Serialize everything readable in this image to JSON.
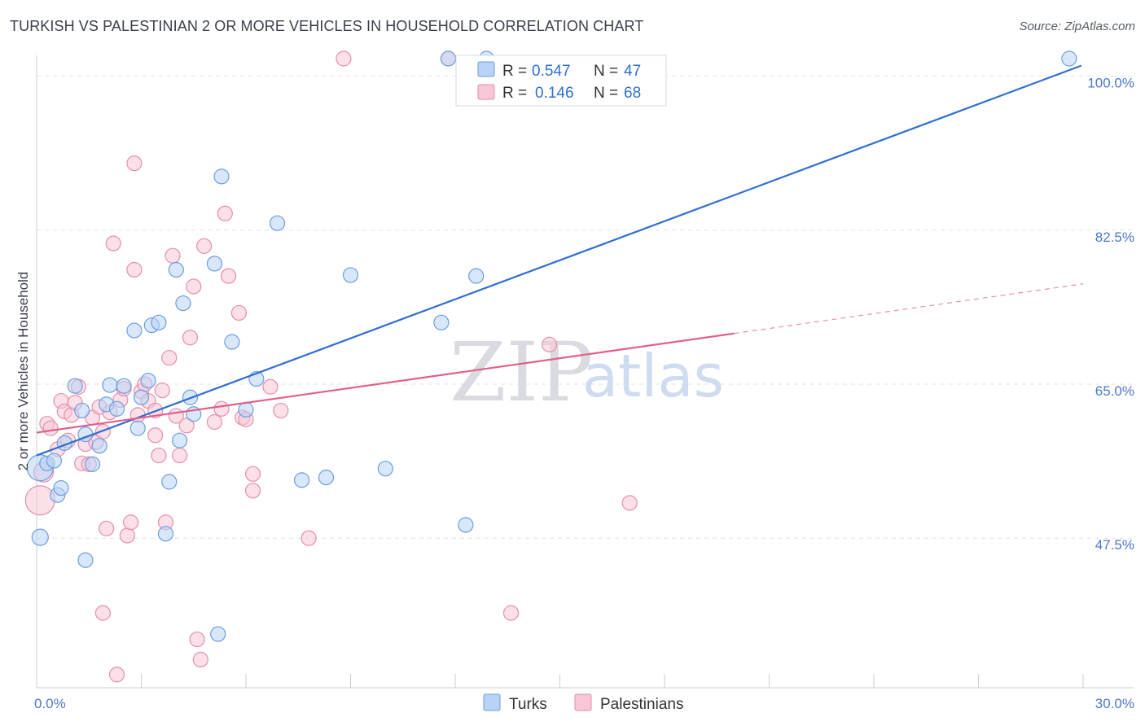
{
  "title": "TURKISH VS PALESTINIAN 2 OR MORE VEHICLES IN HOUSEHOLD CORRELATION CHART",
  "source": "Source: ZipAtlas.com",
  "watermark": {
    "zip": "ZIP",
    "atlas": "atlas"
  },
  "colors": {
    "turks_fill": "#b8d3f5",
    "turks_stroke": "#6d9ddf",
    "turks_line": "#2f6fd1",
    "pal_fill": "#f8c6d6",
    "pal_stroke": "#e58fab",
    "pal_line": "#e0608a",
    "grid": "#dde1e8",
    "tick_text": "#4a78c8"
  },
  "legend": {
    "rows": [
      {
        "r_label": "R =",
        "r_value": "0.547",
        "n_label": "N =",
        "n_value": "47"
      },
      {
        "r_label": "R =",
        "r_value": "0.146",
        "n_label": "N =",
        "n_value": "68"
      }
    ]
  },
  "chart_data": {
    "type": "scatter",
    "xlabel": "",
    "ylabel": "2 or more Vehicles in Household",
    "xlim": [
      0,
      30
    ],
    "ylim": [
      30.5,
      102
    ],
    "x_tick_labels": [
      "0.0%",
      "30.0%"
    ],
    "y_ticks": [
      47.5,
      65.0,
      82.5,
      100.0
    ],
    "y_tick_labels": [
      "47.5%",
      "65.0%",
      "82.5%",
      "100.0%"
    ],
    "grid": true,
    "legend_position": "top-center",
    "series": [
      {
        "name": "Turks",
        "trend": {
          "x0": 0.0,
          "y0": 56.9,
          "x1": 29.95,
          "y1": 101.2,
          "dashed_from": null
        },
        "points": [
          [
            0.1,
            55.5,
            16
          ],
          [
            0.1,
            47.6,
            10
          ],
          [
            0.3,
            56.0,
            9
          ],
          [
            0.5,
            56.3,
            9
          ],
          [
            0.6,
            52.4,
            9
          ],
          [
            0.7,
            53.2,
            9
          ],
          [
            0.8,
            58.3,
            9
          ],
          [
            1.1,
            64.8,
            9
          ],
          [
            1.3,
            62.0,
            9
          ],
          [
            1.4,
            45.0,
            9
          ],
          [
            1.4,
            59.3,
            9
          ],
          [
            1.6,
            55.9,
            9
          ],
          [
            1.8,
            58.0,
            9
          ],
          [
            2.0,
            62.7,
            9
          ],
          [
            2.1,
            64.9,
            9
          ],
          [
            2.3,
            62.2,
            9
          ],
          [
            2.5,
            64.8,
            9
          ],
          [
            2.8,
            71.1,
            9
          ],
          [
            2.9,
            60.0,
            9
          ],
          [
            3.0,
            63.5,
            9
          ],
          [
            3.2,
            65.4,
            9
          ],
          [
            3.3,
            71.7,
            9
          ],
          [
            3.5,
            72.0,
            9
          ],
          [
            3.7,
            48.0,
            9
          ],
          [
            3.8,
            53.9,
            9
          ],
          [
            4.0,
            78.0,
            9
          ],
          [
            4.1,
            58.6,
            9
          ],
          [
            4.2,
            74.2,
            9
          ],
          [
            4.4,
            63.5,
            9
          ],
          [
            4.5,
            61.6,
            9
          ],
          [
            5.1,
            78.7,
            9
          ],
          [
            5.2,
            36.6,
            9
          ],
          [
            5.3,
            88.6,
            9
          ],
          [
            5.6,
            69.8,
            9
          ],
          [
            6.0,
            62.1,
            9
          ],
          [
            6.3,
            65.6,
            9
          ],
          [
            6.9,
            83.3,
            9
          ],
          [
            7.6,
            54.1,
            9
          ],
          [
            8.3,
            54.4,
            9
          ],
          [
            9.0,
            77.4,
            9
          ],
          [
            10.0,
            55.4,
            9
          ],
          [
            11.6,
            72.0,
            9
          ],
          [
            11.8,
            102.0,
            9
          ],
          [
            12.3,
            49.0,
            9
          ],
          [
            12.6,
            77.3,
            9
          ],
          [
            12.9,
            102.0,
            9
          ],
          [
            29.6,
            102.0,
            9
          ]
        ]
      },
      {
        "name": "Palestinians",
        "trend": {
          "x0": 0.0,
          "y0": 59.5,
          "x1": 30.0,
          "y1": 76.4,
          "dashed_from": 20.0
        },
        "points": [
          [
            0.1,
            51.8,
            18
          ],
          [
            0.2,
            55.0,
            12
          ],
          [
            0.3,
            60.5,
            9
          ],
          [
            0.4,
            60.0,
            9
          ],
          [
            0.6,
            57.6,
            9
          ],
          [
            0.7,
            63.1,
            9
          ],
          [
            0.8,
            61.9,
            9
          ],
          [
            0.9,
            58.6,
            9
          ],
          [
            1.0,
            61.5,
            9
          ],
          [
            1.1,
            62.9,
            9
          ],
          [
            1.2,
            64.7,
            9
          ],
          [
            1.3,
            56.0,
            9
          ],
          [
            1.4,
            58.2,
            9
          ],
          [
            1.5,
            55.9,
            9
          ],
          [
            1.6,
            61.2,
            9
          ],
          [
            1.7,
            58.4,
            9
          ],
          [
            1.8,
            62.4,
            9
          ],
          [
            1.9,
            59.6,
            9
          ],
          [
            1.9,
            39.0,
            9
          ],
          [
            2.0,
            48.6,
            9
          ],
          [
            2.1,
            61.8,
            9
          ],
          [
            2.2,
            81.0,
            9
          ],
          [
            2.3,
            32.0,
            9
          ],
          [
            2.4,
            63.2,
            9
          ],
          [
            2.5,
            64.5,
            9
          ],
          [
            2.6,
            47.8,
            9
          ],
          [
            2.7,
            49.3,
            9
          ],
          [
            2.8,
            90.1,
            9
          ],
          [
            2.8,
            78.0,
            9
          ],
          [
            2.9,
            61.5,
            9
          ],
          [
            3.0,
            64.2,
            9
          ],
          [
            3.1,
            65.0,
            9
          ],
          [
            3.2,
            63.1,
            9
          ],
          [
            3.4,
            59.2,
            9
          ],
          [
            3.4,
            62.0,
            9
          ],
          [
            3.5,
            56.9,
            9
          ],
          [
            3.6,
            64.3,
            9
          ],
          [
            3.7,
            49.3,
            9
          ],
          [
            3.8,
            68.0,
            9
          ],
          [
            3.9,
            79.6,
            9
          ],
          [
            4.0,
            61.4,
            9
          ],
          [
            4.1,
            56.9,
            9
          ],
          [
            4.3,
            60.3,
            9
          ],
          [
            4.4,
            70.3,
            9
          ],
          [
            4.5,
            76.1,
            9
          ],
          [
            4.6,
            36.0,
            9
          ],
          [
            4.7,
            33.7,
            9
          ],
          [
            4.8,
            80.7,
            9
          ],
          [
            5.1,
            60.7,
            9
          ],
          [
            5.3,
            62.2,
            9
          ],
          [
            5.4,
            84.4,
            9
          ],
          [
            5.5,
            77.3,
            9
          ],
          [
            5.8,
            73.1,
            9
          ],
          [
            5.9,
            61.2,
            9
          ],
          [
            6.0,
            61.0,
            9
          ],
          [
            6.2,
            52.9,
            9
          ],
          [
            6.2,
            54.8,
            9
          ],
          [
            6.7,
            64.7,
            9
          ],
          [
            7.0,
            62.0,
            9
          ],
          [
            7.8,
            47.5,
            9
          ],
          [
            8.8,
            102.0,
            9
          ],
          [
            11.8,
            102.0,
            9
          ],
          [
            13.6,
            39.0,
            9
          ],
          [
            14.7,
            69.5,
            9
          ],
          [
            17.0,
            51.5,
            9
          ],
          [
            14.0,
            100.5,
            9
          ],
          [
            13.0,
            100.0,
            9
          ],
          [
            15.0,
            101.0,
            9
          ]
        ]
      }
    ]
  },
  "bottom_legend": [
    "Turks",
    "Palestinians"
  ]
}
